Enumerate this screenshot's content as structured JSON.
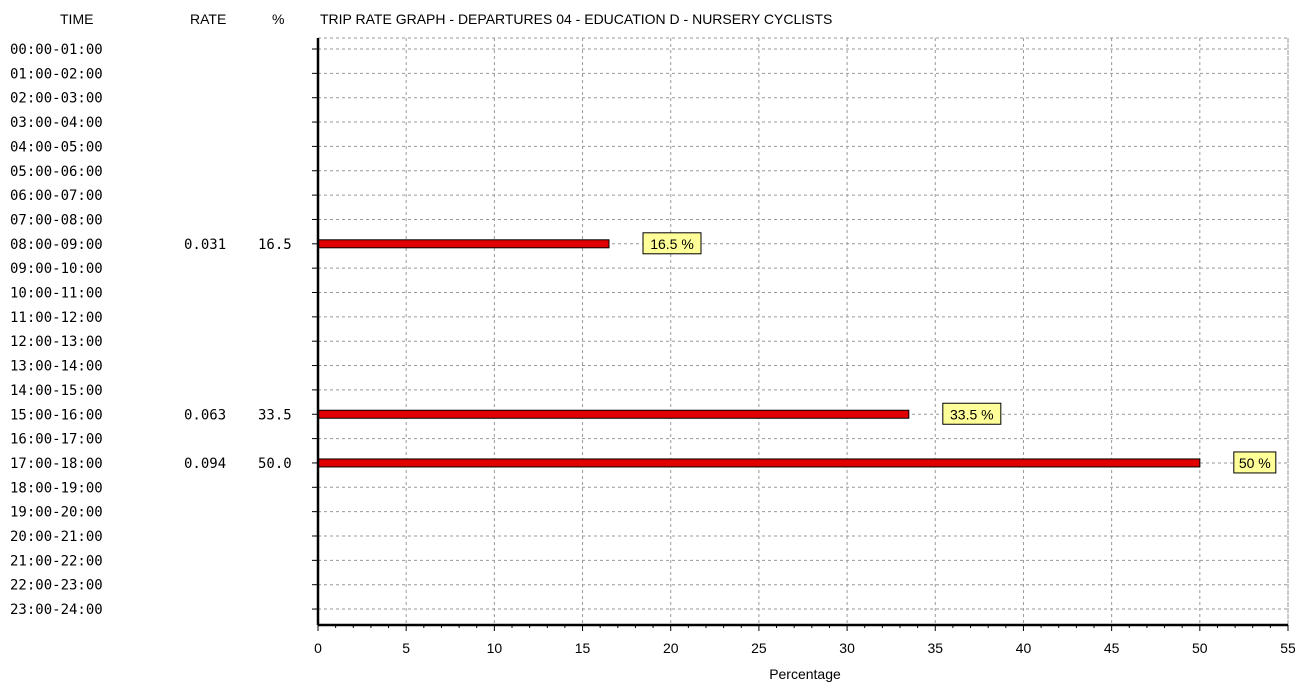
{
  "header": {
    "time": "TIME",
    "rate": "RATE",
    "pct": "%",
    "title": "TRIP RATE GRAPH - DEPARTURES  04 - EDUCATION  D - NURSERY    CYCLISTS"
  },
  "colors": {
    "bar": "#e00000",
    "label_bg": "#ffff99",
    "grid": "#999999"
  },
  "chart_data": {
    "type": "bar",
    "orientation": "horizontal",
    "title": "TRIP RATE GRAPH - DEPARTURES  04 - EDUCATION  D - NURSERY    CYCLISTS",
    "xlabel": "Percentage",
    "ylabel": "TIME",
    "xlim": [
      0,
      55
    ],
    "x_ticks": [
      "0",
      "5",
      "10",
      "15",
      "20",
      "25",
      "30",
      "35",
      "40",
      "45",
      "50",
      "55"
    ],
    "grid": true,
    "categories": [
      "00:00-01:00",
      "01:00-02:00",
      "02:00-03:00",
      "03:00-04:00",
      "04:00-05:00",
      "05:00-06:00",
      "06:00-07:00",
      "07:00-08:00",
      "08:00-09:00",
      "09:00-10:00",
      "10:00-11:00",
      "11:00-12:00",
      "12:00-13:00",
      "13:00-14:00",
      "14:00-15:00",
      "15:00-16:00",
      "16:00-17:00",
      "17:00-18:00",
      "18:00-19:00",
      "19:00-20:00",
      "20:00-21:00",
      "21:00-22:00",
      "22:00-23:00",
      "23:00-24:00"
    ],
    "values": [
      0,
      0,
      0,
      0,
      0,
      0,
      0,
      0,
      16.5,
      0,
      0,
      0,
      0,
      0,
      0,
      33.5,
      0,
      50.0,
      0,
      0,
      0,
      0,
      0,
      0
    ],
    "rates": [
      "",
      "",
      "",
      "",
      "",
      "",
      "",
      "",
      "0.031",
      "",
      "",
      "",
      "",
      "",
      "",
      "0.063",
      "",
      "0.094",
      "",
      "",
      "",
      "",
      "",
      ""
    ],
    "pct_labels": [
      "",
      "",
      "",
      "",
      "",
      "",
      "",
      "",
      "16.5",
      "",
      "",
      "",
      "",
      "",
      "",
      "33.5",
      "",
      "50.0",
      "",
      "",
      "",
      "",
      "",
      ""
    ],
    "annotations": [
      "",
      "",
      "",
      "",
      "",
      "",
      "",
      "",
      "16.5 %",
      "",
      "",
      "",
      "",
      "",
      "",
      "33.5 %",
      "",
      "50 %",
      "",
      "",
      "",
      "",
      "",
      ""
    ]
  }
}
